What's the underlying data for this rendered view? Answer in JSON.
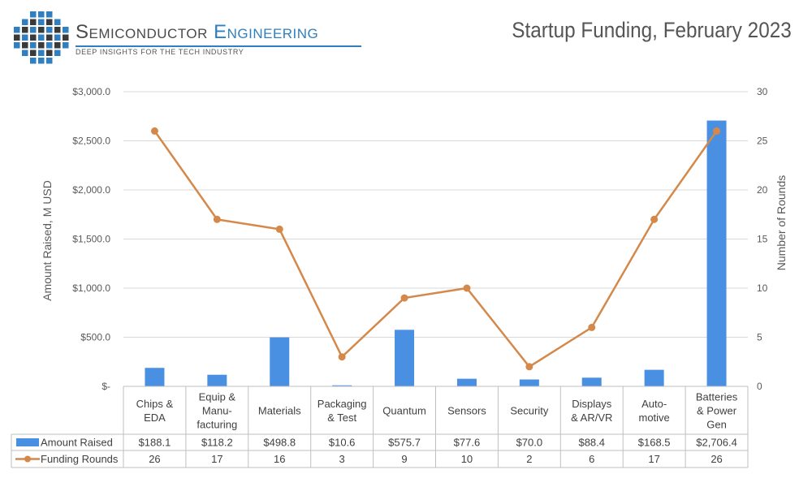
{
  "header": {
    "logo_name_part1": "Semiconductor ",
    "logo_name_part2": "Engineering",
    "logo_tagline": "DEEP INSIGHTS FOR THE TECH INDUSTRY"
  },
  "colors": {
    "bar": "#4a90e2",
    "line": "#d4894b",
    "logo_blue": "#2f7fc1",
    "logo_dark": "#3a3a3a",
    "grid": "#d9d9d9"
  },
  "chart_data": {
    "type": "bar",
    "title": "Startup Funding, February 2023",
    "categories": [
      [
        "Chips &",
        "EDA"
      ],
      [
        "Equip &",
        "Manu-",
        "facturing"
      ],
      [
        "Materials"
      ],
      [
        "Packaging",
        "& Test"
      ],
      [
        "Quantum"
      ],
      [
        "Sensors"
      ],
      [
        "Security"
      ],
      [
        "Displays",
        "& AR/VR"
      ],
      [
        "Auto-",
        "motive"
      ],
      [
        "Batteries",
        "& Power",
        "Gen"
      ]
    ],
    "series": [
      {
        "name": "Amount Raised",
        "type": "bar",
        "axis": "left",
        "values": [
          188.1,
          118.2,
          498.8,
          10.6,
          575.7,
          77.6,
          70.0,
          88.4,
          168.5,
          2706.4
        ],
        "labels": [
          "$188.1",
          "$118.2",
          "$498.8",
          "$10.6",
          "$575.7",
          "$77.6",
          "$70.0",
          "$88.4",
          "$168.5",
          "$2,706.4"
        ]
      },
      {
        "name": "Funding Rounds",
        "type": "line",
        "axis": "right",
        "values": [
          26,
          17,
          16,
          3,
          9,
          10,
          2,
          6,
          17,
          26
        ],
        "labels": [
          "26",
          "17",
          "16",
          "3",
          "9",
          "10",
          "2",
          "6",
          "17",
          "26"
        ]
      }
    ],
    "ylabel": "Amount Raised, M USD",
    "y2label": "Number of Rounds",
    "ylim": [
      0,
      3000
    ],
    "y2lim": [
      0,
      30
    ],
    "yticks": [
      0,
      500,
      1000,
      1500,
      2000,
      2500,
      3000
    ],
    "ytick_labels": [
      "$-",
      "$500.0",
      "$1,000.0",
      "$1,500.0",
      "$2,000.0",
      "$2,500.0",
      "$3,000.0"
    ],
    "y2ticks": [
      0,
      5,
      10,
      15,
      20,
      25,
      30
    ],
    "y2tick_labels": [
      "0",
      "5",
      "10",
      "15",
      "20",
      "25",
      "30"
    ],
    "grid": true,
    "legend": "data-table"
  }
}
